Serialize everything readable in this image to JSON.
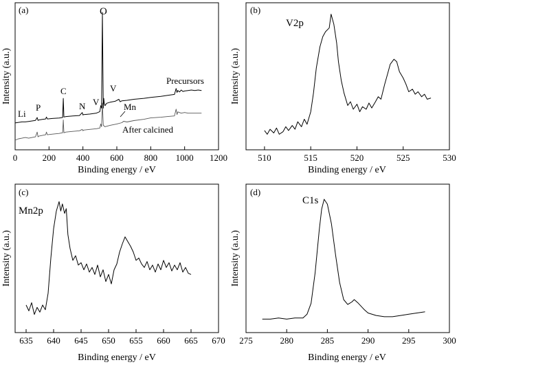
{
  "chart_data": [
    {
      "panel": "(a)",
      "type": "line",
      "xlabel": "Binding energy / eV",
      "ylabel": "Intensity (a.u.)",
      "xlim": [
        0,
        1200
      ],
      "xticks": [
        0,
        200,
        400,
        600,
        800,
        1000,
        1200
      ],
      "y_ticks_shown": false,
      "series": [
        {
          "name": "Precursors",
          "x": [
            0,
            20,
            40,
            60,
            80,
            100,
            120,
            130,
            135,
            140,
            160,
            180,
            185,
            190,
            220,
            260,
            280,
            284,
            288,
            300,
            340,
            380,
            396,
            400,
            404,
            440,
            480,
            500,
            505,
            510,
            515,
            520,
            523,
            526,
            530,
            540,
            560,
            590,
            612,
            620,
            630,
            660,
            700,
            760,
            800,
            860,
            900,
            940,
            950,
            955,
            960,
            970,
            980,
            990,
            1000,
            1020,
            1040,
            1060,
            1080,
            1100
          ],
          "y": [
            10,
            11,
            12,
            12,
            13,
            14,
            15,
            21,
            15,
            16,
            17,
            18,
            22,
            18,
            19,
            20,
            21,
            60,
            22,
            23,
            24,
            25,
            31,
            26,
            27,
            28,
            30,
            33,
            45,
            40,
            235,
            40,
            60,
            50,
            45,
            50,
            52,
            54,
            58,
            53,
            55,
            56,
            58,
            60,
            62,
            64,
            66,
            68,
            80,
            72,
            76,
            73,
            77,
            74,
            75,
            76,
            77,
            76,
            77,
            76
          ]
        },
        {
          "name": "After calcined",
          "x": [
            0,
            20,
            40,
            60,
            80,
            100,
            120,
            130,
            135,
            140,
            160,
            180,
            185,
            190,
            220,
            260,
            280,
            284,
            288,
            300,
            340,
            380,
            396,
            400,
            404,
            440,
            480,
            500,
            505,
            510,
            515,
            520,
            530,
            560,
            600,
            630,
            640,
            660,
            700,
            760,
            800,
            860,
            900,
            940,
            950,
            955,
            960,
            980,
            1000,
            1020,
            1060,
            1100
          ],
          "y": [
            0,
            2,
            3,
            4,
            3,
            4,
            5,
            12,
            5,
            6,
            7,
            8,
            12,
            8,
            9,
            10,
            11,
            30,
            11,
            12,
            13,
            14,
            16,
            14,
            15,
            16,
            17,
            18,
            24,
            20,
            55,
            22,
            20,
            22,
            24,
            26,
            28,
            27,
            29,
            31,
            33,
            34,
            35,
            36,
            46,
            38,
            42,
            40,
            41,
            40,
            40,
            40
          ]
        }
      ],
      "annotations": [
        "(a)",
        "O",
        "Precursors",
        "C",
        "N",
        "V",
        "V",
        "Mn",
        "Li",
        "P",
        "After calcined"
      ]
    },
    {
      "panel": "(b)",
      "type": "line",
      "xlabel": "Binding energy / eV",
      "ylabel": "Intensity (a.u.)",
      "xlim": [
        508,
        530
      ],
      "xticks": [
        510,
        515,
        520,
        525,
        530
      ],
      "y_ticks_shown": false,
      "series": [
        {
          "x": [
            510,
            510.3,
            510.6,
            511,
            511.3,
            511.6,
            512,
            512.3,
            512.6,
            513,
            513.3,
            513.6,
            514,
            514.3,
            514.6,
            515,
            515.3,
            515.6,
            516,
            516.3,
            516.6,
            517,
            517.2,
            517.5,
            517.8,
            518,
            518.3,
            518.6,
            519,
            519.3,
            519.6,
            520,
            520.3,
            520.6,
            521,
            521.3,
            521.6,
            522,
            522.3,
            522.6,
            523,
            523.3,
            523.6,
            524,
            524.3,
            524.6,
            525,
            525.3,
            525.6,
            526,
            526.3,
            526.6,
            527,
            527.3,
            527.6,
            528
          ],
          "y": [
            0.05,
            0.02,
            0.06,
            0.03,
            0.07,
            0.02,
            0.04,
            0.08,
            0.05,
            0.09,
            0.06,
            0.12,
            0.08,
            0.14,
            0.1,
            0.2,
            0.35,
            0.55,
            0.72,
            0.8,
            0.84,
            0.87,
            0.98,
            0.9,
            0.75,
            0.6,
            0.45,
            0.35,
            0.25,
            0.28,
            0.22,
            0.26,
            0.2,
            0.24,
            0.22,
            0.27,
            0.23,
            0.28,
            0.32,
            0.3,
            0.42,
            0.5,
            0.58,
            0.62,
            0.6,
            0.52,
            0.47,
            0.42,
            0.36,
            0.38,
            0.34,
            0.36,
            0.32,
            0.34,
            0.3,
            0.31
          ]
        }
      ],
      "annotations": [
        "(b)",
        "V2p"
      ]
    },
    {
      "panel": "(c)",
      "type": "line",
      "xlabel": "Binding energy / eV",
      "ylabel": "Intensity (a.u.)",
      "xlim": [
        633,
        670
      ],
      "xticks": [
        635,
        640,
        645,
        650,
        655,
        660,
        665,
        670
      ],
      "y_ticks_shown": false,
      "series": [
        {
          "x": [
            635,
            635.5,
            636,
            636.5,
            637,
            637.5,
            638,
            638.5,
            639,
            639.5,
            640,
            640.5,
            641,
            641.3,
            641.6,
            642,
            642.3,
            642.6,
            643,
            643.5,
            644,
            644.5,
            645,
            645.5,
            646,
            646.5,
            647,
            647.5,
            648,
            648.5,
            649,
            649.5,
            650,
            650.5,
            651,
            651.5,
            652,
            652.5,
            653,
            653.5,
            654,
            654.5,
            655,
            655.5,
            656,
            656.5,
            657,
            657.5,
            658,
            658.5,
            659,
            659.5,
            660,
            660.5,
            661,
            661.5,
            662,
            662.5,
            663,
            663.5,
            664,
            664.5,
            665
          ],
          "y": [
            0.1,
            0.05,
            0.12,
            0.02,
            0.08,
            0.04,
            0.1,
            0.06,
            0.2,
            0.5,
            0.75,
            0.9,
            0.98,
            0.9,
            0.96,
            0.88,
            0.92,
            0.7,
            0.58,
            0.48,
            0.52,
            0.44,
            0.46,
            0.4,
            0.45,
            0.38,
            0.42,
            0.36,
            0.44,
            0.34,
            0.4,
            0.3,
            0.36,
            0.28,
            0.4,
            0.45,
            0.55,
            0.62,
            0.68,
            0.64,
            0.6,
            0.55,
            0.48,
            0.5,
            0.45,
            0.42,
            0.47,
            0.4,
            0.44,
            0.38,
            0.45,
            0.4,
            0.48,
            0.42,
            0.46,
            0.39,
            0.44,
            0.4,
            0.46,
            0.38,
            0.42,
            0.37,
            0.36
          ]
        }
      ],
      "annotations": [
        "(c)",
        "Mn2p"
      ]
    },
    {
      "panel": "(d)",
      "type": "line",
      "xlabel": "Binding energy / eV",
      "ylabel": "Intensity (a.u.)",
      "xlim": [
        275,
        300
      ],
      "xticks": [
        275,
        280,
        285,
        290,
        295,
        300
      ],
      "y_ticks_shown": false,
      "series": [
        {
          "x": [
            277,
            278,
            279,
            280,
            281,
            282,
            282.5,
            283,
            283.5,
            284,
            284.3,
            284.6,
            285,
            285.5,
            286,
            286.5,
            287,
            287.5,
            288,
            288.3,
            288.8,
            289.5,
            290,
            291,
            292,
            293,
            294,
            295,
            296,
            297
          ],
          "y": [
            0.02,
            0.02,
            0.03,
            0.02,
            0.03,
            0.03,
            0.06,
            0.15,
            0.4,
            0.75,
            0.92,
            1.0,
            0.96,
            0.8,
            0.55,
            0.32,
            0.18,
            0.14,
            0.16,
            0.18,
            0.15,
            0.1,
            0.07,
            0.05,
            0.04,
            0.04,
            0.05,
            0.06,
            0.07,
            0.08
          ]
        }
      ],
      "annotations": [
        "(d)",
        "C1s"
      ]
    }
  ]
}
